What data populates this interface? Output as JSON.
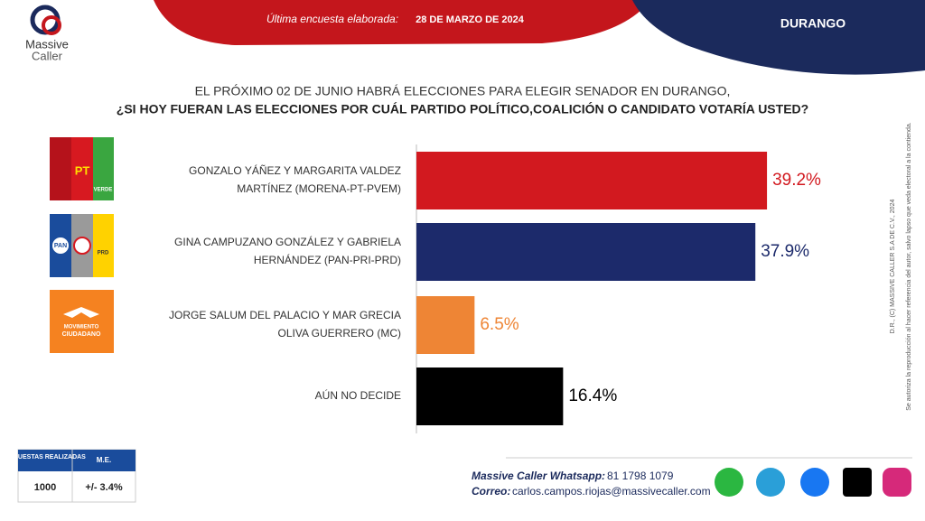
{
  "header": {
    "survey_label": "Última encuesta elaborada:",
    "survey_date": "28 DE MARZO DE 2024",
    "region": "DURANGO",
    "brand_top": "Massive",
    "brand_bottom": "Caller"
  },
  "chart_data": {
    "type": "barh",
    "title": [
      "EL PRÓXIMO 02 DE JUNIO HABRÁ ELECCIONES PARA ELEGIR SENADOR EN DURANGO,",
      "¿SI HOY FUERAN LAS ELECCIONES  POR CUÁL PARTIDO POLÍTICO,COALICIÓN  O CANDIDATO  VOTARÍA USTED?"
    ],
    "categories": [
      [
        "GONZALO YÁÑEZ Y MARGARITA VALDEZ",
        "MARTÍNEZ     (MORENA-PT-PVEM)"
      ],
      [
        "GINA CAMPUZANO GONZÁLEZ Y GABRIELA",
        "HERNÁNDEZ (PAN-PRI-PRD)"
      ],
      [
        "JORGE SALUM DEL PALACIO Y MAR GRECIA",
        "OLIVA GUERRERO (MC)"
      ],
      [
        "AÚN NO DECIDE"
      ]
    ],
    "values": [
      39.2,
      37.9,
      6.5,
      16.4
    ],
    "value_labels": [
      "39.2%",
      "37.9%",
      "6.5%",
      "16.4%"
    ],
    "colors": [
      "#d2191f",
      "#1c2a6b",
      "#ee8535",
      "#000000"
    ]
  },
  "logos": {
    "pt": "PT",
    "verde": "VERDE",
    "pan": "PAN",
    "prd": "PRD",
    "mc": [
      "MOVIMIENTO",
      "CIUDADANO"
    ]
  },
  "side_note": [
    "D.R., (C) MASSIVE CALLER S.A DE C.V., 2024",
    "Se autoriza la reproducción al hacer referencia del autor, salvo lapso que veda electoral a la contienda."
  ],
  "footer": {
    "table": {
      "headers": [
        "ENCUESTAS REALIZADAS",
        "M.E."
      ],
      "row": [
        "1000",
        "+/- 3.4%"
      ]
    },
    "whatsapp_label": "Massive Caller Whatsapp:",
    "whatsapp": "81 1798 1079",
    "email_label": "Correo:",
    "email": "carlos.campos.riojas@massivecaller.com"
  }
}
